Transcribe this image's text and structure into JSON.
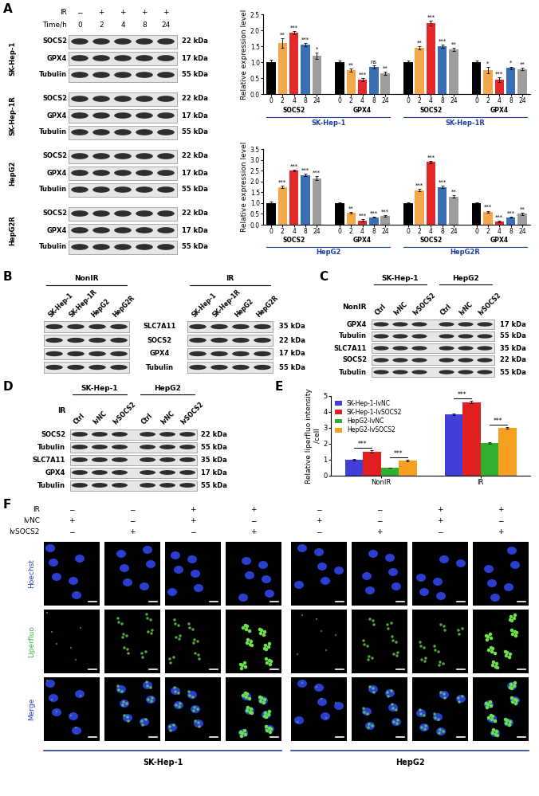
{
  "panel_labels": [
    "A",
    "B",
    "C",
    "D",
    "E",
    "F"
  ],
  "panel_A_blot": {
    "header": [
      {
        "label": "IR",
        "marks": [
          "−",
          "+",
          "+",
          "+",
          "+"
        ]
      },
      {
        "label": "Time/h",
        "marks": [
          "0",
          "2",
          "4",
          "8",
          "24"
        ]
      }
    ],
    "groups": [
      {
        "name": "SK-Hep-1",
        "rows": [
          [
            "SOCS2",
            "22 kDa"
          ],
          [
            "GPX4",
            "17 kDa"
          ],
          [
            "Tubulin",
            "55 kDa"
          ]
        ]
      },
      {
        "name": "SK-Hep-1R",
        "rows": [
          [
            "SOCS2",
            "22 kDa"
          ],
          [
            "GPX4",
            "17 kDa"
          ],
          [
            "Tubulin",
            "55 kDa"
          ]
        ]
      },
      {
        "name": "HepG2",
        "rows": [
          [
            "SOCS2",
            "22 kDa"
          ],
          [
            "GPX4",
            "17 kDa"
          ],
          [
            "Tubulin",
            "55 kDa"
          ]
        ]
      },
      {
        "name": "HepG2R",
        "rows": [
          [
            "SOCS2",
            "22 kDa"
          ],
          [
            "GPX4",
            "17 kDa"
          ],
          [
            "Tubulin",
            "55 kDa"
          ]
        ]
      }
    ]
  },
  "panel_B_blot": {
    "blots": [
      {
        "label": "NonIR",
        "lanes": [
          "SK-Hep-1",
          "SK-Hep-1R",
          "HepG2",
          "HepG2R"
        ]
      },
      {
        "label": "IR",
        "lanes": [
          "SK-Hep-1",
          "SK-Hep-1R",
          "HepG2",
          "HepG2R"
        ]
      }
    ],
    "rows": [
      [
        "SLC7A11",
        "35 kDa"
      ],
      [
        "SOCS2",
        "22 kDa"
      ],
      [
        "GPX4",
        "17 kDa"
      ],
      [
        "Tubulin",
        "55 kDa"
      ]
    ]
  },
  "panel_C_blot": {
    "condition": "NonIR",
    "groups": [
      {
        "name": "SK-Hep-1",
        "lanes": [
          "Ctrl",
          "lvNC",
          "lvSOCS2"
        ]
      },
      {
        "name": "HepG2",
        "lanes": [
          "Ctrl",
          "lvNC",
          "lvSOCS2"
        ]
      }
    ],
    "rows": [
      [
        "GPX4",
        "17 kDa"
      ],
      [
        "Tubulin",
        "55 kDa"
      ],
      [
        "SLC7A11",
        "35 kDa"
      ],
      [
        "SOCS2",
        "22 kDa"
      ],
      [
        "Tubulin",
        "55 kDa"
      ]
    ]
  },
  "panel_D_blot": {
    "condition": "IR",
    "groups": [
      {
        "name": "SK-Hep-1",
        "lanes": [
          "Ctrl",
          "lvNC",
          "lvSOCS2"
        ]
      },
      {
        "name": "HepG2",
        "lanes": [
          "Ctrl",
          "lvNC",
          "lvSOCS2"
        ]
      }
    ],
    "rows": [
      [
        "SOCS2",
        "22 kDa"
      ],
      [
        "Tubulin",
        "55 kDa"
      ],
      [
        "SLC7A11",
        "35 kDa"
      ],
      [
        "GPX4",
        "17 kDa"
      ],
      [
        "Tubulin",
        "55 kDa"
      ]
    ]
  },
  "chart_data": [
    {
      "type": "bar",
      "categories": [
        "0",
        "2",
        "4",
        "8",
        "24",
        "0",
        "2",
        "4",
        "8",
        "24",
        "0",
        "2",
        "4",
        "8",
        "24",
        "0",
        "2",
        "4",
        "8",
        "24"
      ],
      "values": [
        1.0,
        1.6,
        1.92,
        1.55,
        1.2,
        1.0,
        0.75,
        0.45,
        0.85,
        0.65,
        1.0,
        1.45,
        2.22,
        1.5,
        1.4,
        1.0,
        0.75,
        0.45,
        0.82,
        0.78
      ],
      "errors": [
        0.08,
        0.15,
        0.05,
        0.05,
        0.1,
        0.05,
        0.05,
        0.05,
        0.05,
        0.05,
        0.04,
        0.05,
        0.08,
        0.05,
        0.05,
        0.06,
        0.1,
        0.08,
        0.04,
        0.04
      ],
      "colors": [
        "#000000",
        "#f5a84a",
        "#e5282a",
        "#3a6fb5",
        "#9e9e9e",
        "#000000",
        "#f5a84a",
        "#e5282a",
        "#3a6fb5",
        "#9e9e9e",
        "#000000",
        "#f5a84a",
        "#e5282a",
        "#3a6fb5",
        "#9e9e9e",
        "#000000",
        "#f5a84a",
        "#e5282a",
        "#3a6fb5",
        "#9e9e9e"
      ],
      "significance": [
        null,
        "**",
        "***",
        "***",
        "*",
        null,
        "**",
        "***",
        "ns",
        "**",
        null,
        "**",
        "***",
        "***",
        "**",
        null,
        "*",
        "***",
        "*",
        "**"
      ],
      "group_labels": [
        "SOCS2",
        "GPX4",
        "SOCS2",
        "GPX4"
      ],
      "cell_lines": [
        "SK-Hep-1",
        "SK-Hep-1R"
      ],
      "y_label": "Relative expression level",
      "ylim": [
        0,
        2.5
      ],
      "yticks": [
        {
          "value": 0,
          "label": "0.0"
        },
        0.5,
        {
          "value": 1,
          "label": "1.0"
        },
        1.5,
        {
          "value": 2,
          "label": "2.0"
        },
        2.5
      ]
    },
    {
      "type": "bar",
      "categories": [
        "0",
        "2",
        "4",
        "8",
        "24",
        "0",
        "2",
        "4",
        "8",
        "24",
        "0",
        "2",
        "4",
        "8",
        "24",
        "0",
        "2",
        "4",
        "8",
        "24"
      ],
      "values": [
        1.0,
        1.75,
        2.5,
        2.3,
        2.15,
        1.0,
        0.55,
        0.2,
        0.35,
        0.4,
        1.0,
        1.6,
        2.9,
        1.75,
        1.3,
        1.0,
        0.6,
        0.15,
        0.35,
        0.5
      ],
      "errors": [
        0.06,
        0.04,
        0.03,
        0.05,
        0.1,
        0.03,
        0.03,
        0.05,
        0.03,
        0.03,
        0.03,
        0.06,
        0.05,
        0.04,
        0.06,
        0.04,
        0.04,
        0.03,
        0.03,
        0.04
      ],
      "colors": [
        "#000000",
        "#f5a84a",
        "#e5282a",
        "#3a6fb5",
        "#9e9e9e",
        "#000000",
        "#f5a84a",
        "#e5282a",
        "#3a6fb5",
        "#9e9e9e",
        "#000000",
        "#f5a84a",
        "#e5282a",
        "#3a6fb5",
        "#9e9e9e",
        "#000000",
        "#f5a84a",
        "#e5282a",
        "#3a6fb5",
        "#9e9e9e"
      ],
      "significance": [
        null,
        "***",
        "***",
        "***",
        "***",
        null,
        "**",
        "***",
        "***",
        "***",
        null,
        "***",
        "***",
        "***",
        "**",
        null,
        "***",
        "***",
        "***",
        "**"
      ],
      "group_labels": [
        "SOCS2",
        "GPX4",
        "SOCS2",
        "GPX4"
      ],
      "cell_lines": [
        "HepG2",
        "HepG2R"
      ],
      "y_label": "Relative expression level",
      "ylim": [
        0,
        3.5
      ],
      "yticks": [
        {
          "value": 0,
          "label": "0.0"
        },
        0.5,
        {
          "value": 1,
          "label": "1.0"
        },
        1.5,
        {
          "value": 2,
          "label": "2.0"
        },
        2.5,
        {
          "value": 3,
          "label": "3.0"
        },
        3.5
      ]
    },
    {
      "type": "bar",
      "categories": [
        "NonIR",
        "IR"
      ],
      "series": [
        {
          "name": "SK-Hep-1-lvNC",
          "color": "#4040d8",
          "values": [
            1.0,
            3.85
          ],
          "errors": [
            0.05,
            0.07
          ]
        },
        {
          "name": "SK-Hep-1-lvSOCS2",
          "color": "#e02020",
          "values": [
            1.52,
            4.62
          ],
          "errors": [
            0.06,
            0.06
          ]
        },
        {
          "name": "HepG2-lvNC",
          "color": "#30b030",
          "values": [
            0.5,
            2.05
          ],
          "errors": [
            0.02,
            0.03
          ]
        },
        {
          "name": "HepG2-lvSOCS2",
          "color": "#f5a020",
          "values": [
            0.95,
            3.0
          ],
          "errors": [
            0.03,
            0.05
          ]
        }
      ],
      "significance": [
        {
          "category": "NonIR",
          "pair": [
            "SK-Hep-1-lvNC",
            "SK-Hep-1-lvSOCS2"
          ],
          "label": "***"
        },
        {
          "category": "NonIR",
          "pair": [
            "HepG2-lvNC",
            "HepG2-lvSOCS2"
          ],
          "label": "***"
        },
        {
          "category": "IR",
          "pair": [
            "SK-Hep-1-lvNC",
            "SK-Hep-1-lvSOCS2"
          ],
          "label": "***"
        },
        {
          "category": "IR",
          "pair": [
            "HepG2-lvNC",
            "HepG2-lvSOCS2"
          ],
          "label": "***"
        }
      ],
      "y_label": "Relative liperfluo intensity\n/cell",
      "ylim": [
        0,
        5
      ],
      "yticks": [
        0,
        1,
        2,
        3,
        4,
        5
      ],
      "legend": "upper left"
    }
  ],
  "panel_F_images": {
    "header": [
      {
        "label": "IR",
        "marks": [
          "−",
          "−",
          "+",
          "+",
          "−",
          "−",
          "+",
          "+"
        ]
      },
      {
        "label": "lvNC",
        "marks": [
          "+",
          "−",
          "+",
          "−",
          "+",
          "−",
          "+",
          "−"
        ]
      },
      {
        "label": "lvSOCS2",
        "marks": [
          "−",
          "+",
          "−",
          "+",
          "−",
          "+",
          "−",
          "+"
        ]
      }
    ],
    "rows": [
      "Hoechst",
      "Liperfluo",
      "Merge"
    ],
    "groups": [
      "SK-Hep-1",
      "HepG2"
    ]
  }
}
